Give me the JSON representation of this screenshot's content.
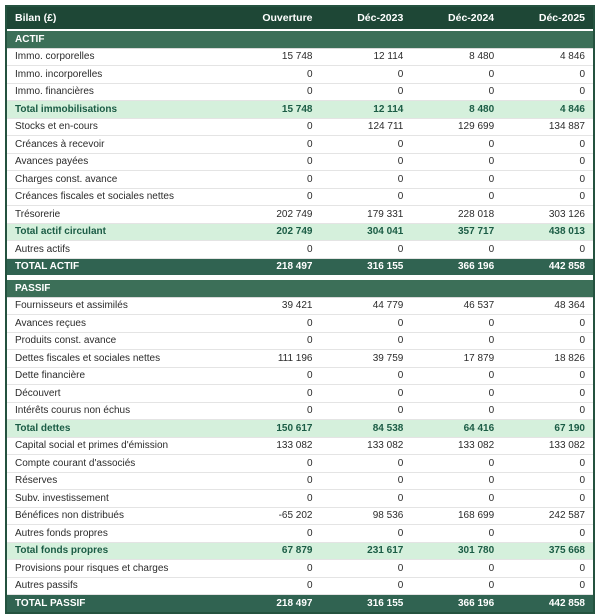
{
  "chart_data": {
    "type": "table",
    "title": "Bilan (£)",
    "columns": [
      "Ouverture",
      "Déc-2023",
      "Déc-2024",
      "Déc-2025"
    ],
    "number_format": "thousands separated by space",
    "colors": {
      "header_bg": "#1E4736",
      "section_bg": "#3C6F58",
      "total_bg": "#306351",
      "subtotal_bg": "#D5F0DC",
      "subtotal_text": "#1B5C45",
      "border": "#24523F"
    },
    "sections": [
      {
        "header": "ACTIF",
        "rows": [
          {
            "label": "Immo. corporelles",
            "row_type": "item",
            "values": [
              15748,
              12114,
              8480,
              4846
            ]
          },
          {
            "label": "Immo. incorporelles",
            "row_type": "item",
            "values": [
              0,
              0,
              0,
              0
            ]
          },
          {
            "label": "Immo. financières",
            "row_type": "item",
            "values": [
              0,
              0,
              0,
              0
            ]
          },
          {
            "label": "Total immobilisations",
            "row_type": "subtotal",
            "values": [
              15748,
              12114,
              8480,
              4846
            ]
          },
          {
            "label": "Stocks et en-cours",
            "row_type": "item",
            "values": [
              0,
              124711,
              129699,
              134887
            ]
          },
          {
            "label": "Créances à recevoir",
            "row_type": "item",
            "values": [
              0,
              0,
              0,
              0
            ]
          },
          {
            "label": "Avances payées",
            "row_type": "item",
            "values": [
              0,
              0,
              0,
              0
            ]
          },
          {
            "label": "Charges const. avance",
            "row_type": "item",
            "values": [
              0,
              0,
              0,
              0
            ]
          },
          {
            "label": "Créances fiscales et sociales nettes",
            "row_type": "item",
            "values": [
              0,
              0,
              0,
              0
            ]
          },
          {
            "label": "Trésorerie",
            "row_type": "item",
            "values": [
              202749,
              179331,
              228018,
              303126
            ]
          },
          {
            "label": "Total actif circulant",
            "row_type": "subtotal",
            "values": [
              202749,
              304041,
              357717,
              438013
            ]
          },
          {
            "label": "Autres actifs",
            "row_type": "item",
            "values": [
              0,
              0,
              0,
              0
            ]
          },
          {
            "label": "TOTAL ACTIF",
            "row_type": "total",
            "values": [
              218497,
              316155,
              366196,
              442858
            ]
          }
        ]
      },
      {
        "header": "PASSIF",
        "rows": [
          {
            "label": "Fournisseurs et assimilés",
            "row_type": "item",
            "values": [
              39421,
              44779,
              46537,
              48364
            ]
          },
          {
            "label": "Avances reçues",
            "row_type": "item",
            "values": [
              0,
              0,
              0,
              0
            ]
          },
          {
            "label": "Produits const. avance",
            "row_type": "item",
            "values": [
              0,
              0,
              0,
              0
            ]
          },
          {
            "label": "Dettes fiscales et sociales nettes",
            "row_type": "item",
            "values": [
              111196,
              39759,
              17879,
              18826
            ]
          },
          {
            "label": "Dette financière",
            "row_type": "item",
            "values": [
              0,
              0,
              0,
              0
            ]
          },
          {
            "label": "Découvert",
            "row_type": "item",
            "values": [
              0,
              0,
              0,
              0
            ]
          },
          {
            "label": "Intérêts courus non échus",
            "row_type": "item",
            "values": [
              0,
              0,
              0,
              0
            ]
          },
          {
            "label": "Total dettes",
            "row_type": "subtotal",
            "values": [
              150617,
              84538,
              64416,
              67190
            ]
          },
          {
            "label": "Capital social et primes d'émission",
            "row_type": "item",
            "values": [
              133082,
              133082,
              133082,
              133082
            ]
          },
          {
            "label": "Compte courant d'associés",
            "row_type": "item",
            "values": [
              0,
              0,
              0,
              0
            ]
          },
          {
            "label": "Réserves",
            "row_type": "item",
            "values": [
              0,
              0,
              0,
              0
            ]
          },
          {
            "label": "Subv. investissement",
            "row_type": "item",
            "values": [
              0,
              0,
              0,
              0
            ]
          },
          {
            "label": "Bénéfices non distribués",
            "row_type": "item",
            "values": [
              -65202,
              98536,
              168699,
              242587
            ]
          },
          {
            "label": "Autres fonds propres",
            "row_type": "item",
            "values": [
              0,
              0,
              0,
              0
            ]
          },
          {
            "label": "Total fonds propres",
            "row_type": "subtotal",
            "values": [
              67879,
              231617,
              301780,
              375668
            ]
          },
          {
            "label": "Provisions pour risques et charges",
            "row_type": "item",
            "values": [
              0,
              0,
              0,
              0
            ]
          },
          {
            "label": "Autres passifs",
            "row_type": "item",
            "values": [
              0,
              0,
              0,
              0
            ]
          },
          {
            "label": "TOTAL PASSIF",
            "row_type": "total",
            "values": [
              218497,
              316155,
              366196,
              442858
            ]
          }
        ]
      }
    ]
  }
}
